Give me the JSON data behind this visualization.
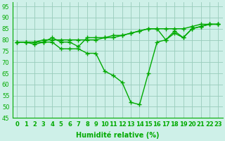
{
  "x": [
    0,
    1,
    2,
    3,
    4,
    5,
    6,
    7,
    8,
    9,
    10,
    11,
    12,
    13,
    14,
    15,
    16,
    17,
    18,
    19,
    20,
    21,
    22,
    23
  ],
  "line1": [
    79,
    79,
    79,
    79,
    81,
    79,
    79,
    77,
    81,
    81,
    81,
    82,
    82,
    83,
    84,
    85,
    85,
    80,
    84,
    81,
    85,
    86,
    87,
    87
  ],
  "line2": [
    79,
    79,
    78,
    79,
    79,
    76,
    76,
    76,
    74,
    74,
    66,
    64,
    61,
    52,
    51,
    65,
    79,
    80,
    83,
    81,
    85,
    86,
    87,
    87
  ],
  "line3": [
    79,
    79,
    79,
    80,
    80,
    80,
    80,
    80,
    80,
    80,
    81,
    81,
    82,
    83,
    84,
    85,
    85,
    85,
    85,
    85,
    86,
    87,
    87,
    87
  ],
  "line_color": "#00aa00",
  "bg_color": "#cef0e8",
  "grid_color": "#99ccbb",
  "xlabel": "Humidité relative (%)",
  "ylim": [
    45,
    97
  ],
  "xlim": [
    -0.5,
    23.5
  ],
  "yticks": [
    45,
    50,
    55,
    60,
    65,
    70,
    75,
    80,
    85,
    90,
    95
  ],
  "xticks": [
    0,
    1,
    2,
    3,
    4,
    5,
    6,
    7,
    8,
    9,
    10,
    11,
    12,
    13,
    14,
    15,
    16,
    17,
    18,
    19,
    20,
    21,
    22,
    23
  ],
  "marker": "+",
  "markersize": 4,
  "linewidth": 1.0,
  "xlabel_fontsize": 7,
  "tick_fontsize": 6,
  "title_color": "#006600"
}
